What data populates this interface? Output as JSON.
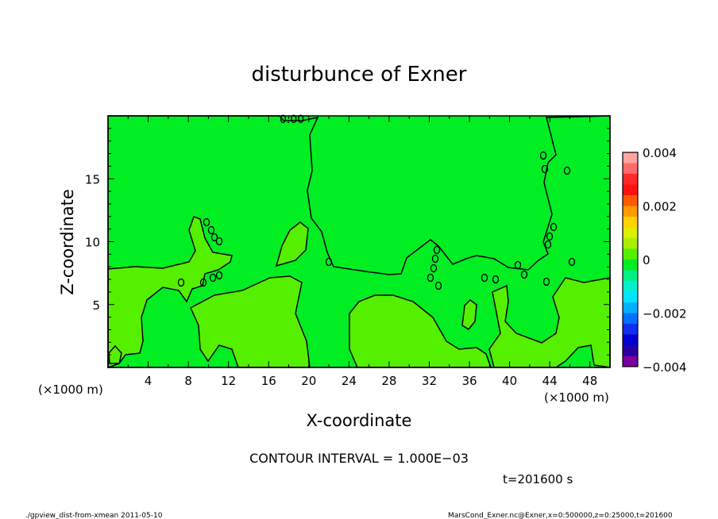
{
  "chart_data": {
    "type": "contour",
    "title": "disturbunce of Exner",
    "xlabel": "X-coordinate",
    "ylabel": "Z-coordinate",
    "x_unit": "(×1000 m)",
    "y_unit": "(×1000 m)",
    "xlim": [
      0,
      50
    ],
    "ylim": [
      0,
      20
    ],
    "x_ticks": [
      4,
      8,
      12,
      16,
      20,
      24,
      28,
      32,
      36,
      40,
      44,
      48
    ],
    "y_ticks": [
      5,
      10,
      15
    ],
    "contour_label": "0.00",
    "colorbar": {
      "range": [
        -0.004,
        0.004
      ],
      "tick_values": [
        0.004,
        0.002,
        0,
        -0.002,
        -0.004
      ],
      "tick_labels": [
        "0.004",
        "0.002",
        "0",
        "−0.002",
        "−0.004"
      ],
      "colors": [
        "#ffa3a3",
        "#ff6b6b",
        "#ff2a2a",
        "#ff1111",
        "#ff5a00",
        "#ff9a00",
        "#ffd200",
        "#ddee00",
        "#a8f000",
        "#55f000",
        "#00ee22",
        "#00f088",
        "#00f0d0",
        "#00e5ff",
        "#00b0ff",
        "#0070ff",
        "#1030f0",
        "#0000d0",
        "#2800a0",
        "#7a00a0"
      ]
    },
    "field_colors": {
      "positive": "#55f000",
      "negative": "#00ee22"
    },
    "footer": {
      "interval": "CONTOUR INTERVAL = 1.000E−03",
      "time": "t=201600 s",
      "left_note": "./gpview_dist-from-xmean  2011-05-10",
      "right_note": "MarsCond_Exner.nc@Exner,x=0:500000,z=0:25000,t=201600"
    }
  }
}
